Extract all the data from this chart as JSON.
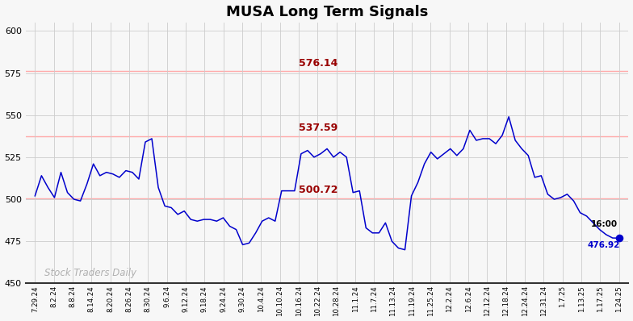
{
  "title": "MUSA Long Term Signals",
  "hlines": [
    {
      "y": 576.14,
      "label": "576.14"
    },
    {
      "y": 537.59,
      "label": "537.59"
    },
    {
      "y": 500.72,
      "label": "500.72"
    }
  ],
  "hline_color": "#ffaaaa",
  "hline_alpha": 0.85,
  "last_price": 476.92,
  "watermark": "Stock Traders Daily",
  "ylim": [
    450,
    605
  ],
  "yticks": [
    450,
    475,
    500,
    525,
    550,
    575,
    600
  ],
  "background_color": "#f7f7f7",
  "line_color": "#0000cc",
  "dot_color": "#0000cc",
  "label_color": "#990000",
  "x_labels": [
    "7.29.24",
    "8.2.24",
    "8.8.24",
    "8.14.24",
    "8.20.24",
    "8.26.24",
    "8.30.24",
    "9.6.24",
    "9.12.24",
    "9.18.24",
    "9.24.24",
    "9.30.24",
    "10.4.24",
    "10.10.24",
    "10.16.24",
    "10.22.24",
    "10.28.24",
    "11.1.24",
    "11.7.24",
    "11.13.24",
    "11.19.24",
    "11.25.24",
    "12.2.24",
    "12.6.24",
    "12.12.24",
    "12.18.24",
    "12.24.24",
    "12.31.24",
    "1.7.25",
    "1.13.25",
    "1.17.25",
    "1.24.25"
  ],
  "prices": [
    502,
    514,
    507,
    501,
    516,
    504,
    500,
    499,
    509,
    521,
    514,
    516,
    515,
    513,
    517,
    516,
    512,
    534,
    536,
    507,
    496,
    495,
    491,
    493,
    488,
    487,
    488,
    488,
    487,
    489,
    484,
    482,
    473,
    474,
    480,
    487,
    489,
    487,
    505,
    505,
    505,
    527,
    529,
    525,
    527,
    530,
    525,
    528,
    525,
    504,
    505,
    483,
    480,
    480,
    486,
    475,
    471,
    470,
    502,
    510,
    521,
    528,
    524,
    527,
    530,
    526,
    530,
    541,
    535,
    536,
    536,
    533,
    538,
    549,
    535,
    530,
    526,
    513,
    514,
    503,
    500,
    501,
    503,
    499,
    492,
    490,
    486,
    482,
    479,
    477,
    476.92
  ]
}
